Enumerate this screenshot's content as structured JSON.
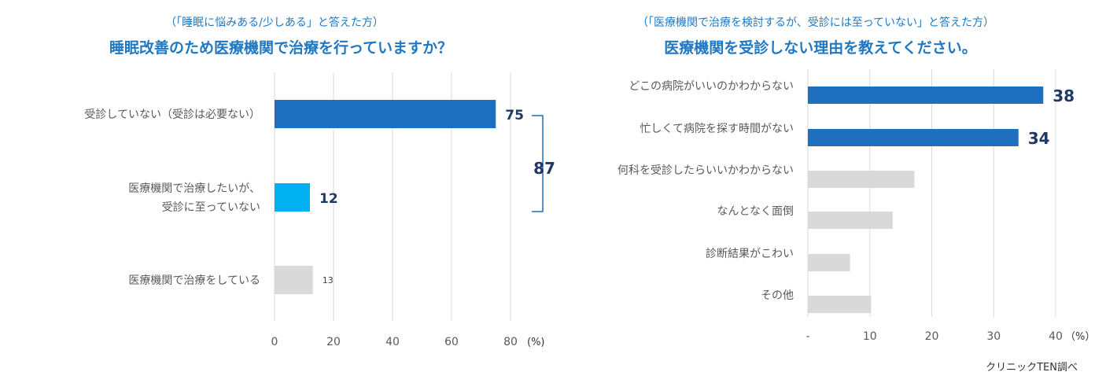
{
  "chart_data": [
    {
      "type": "bar",
      "orientation": "horizontal",
      "subtitle": "（「睡眠に悩みある/少しある」と答えた方）",
      "title": "睡眠改善のため医療機関で治療を行っていますか？",
      "categories": [
        [
          "受診していない（受診は必要ない）"
        ],
        [
          "医療機関で治療したいが、",
          "受診に至っていない"
        ],
        [
          "医療機関で治療をしている"
        ]
      ],
      "values": [
        75,
        12,
        13
      ],
      "value_labels": [
        "75",
        "12",
        "13"
      ],
      "bar_colors": [
        "#1f6fbf",
        "#00b0f0",
        "#d9d9d9"
      ],
      "xlim": [
        0,
        80
      ],
      "xticks": [
        "0",
        "20",
        "40",
        "60",
        "80"
      ],
      "unit": "(%)",
      "grid": true,
      "bracket_total": "87"
    },
    {
      "type": "bar",
      "orientation": "horizontal",
      "subtitle": "（「医療機関で治療を検討するが、受診には至っていない」と答えた方）",
      "title": "医療機関を受診しない理由を教えてください。",
      "categories": [
        [
          "どこの病院がいいのかわからない"
        ],
        [
          "忙しくて病院を探す時間がない"
        ],
        [
          "何科を受診したらいいかわからない"
        ],
        [
          "なんとなく面倒"
        ],
        [
          "診断結果がこわい"
        ],
        [
          "その他"
        ]
      ],
      "values": [
        38,
        34,
        17.2,
        13.7,
        6.8,
        10.2
      ],
      "value_labels": [
        "38",
        "34",
        "",
        "",
        "",
        ""
      ],
      "bar_colors": [
        "#1f6fbf",
        "#1f6fbf",
        "#d9d9d9",
        "#d9d9d9",
        "#d9d9d9",
        "#d9d9d9"
      ],
      "xlim": [
        0,
        40
      ],
      "xticks": [
        "-",
        "10",
        "20",
        "30",
        "40"
      ],
      "unit": "（%）",
      "grid": true
    }
  ],
  "credit": "クリニックTEN調べ"
}
